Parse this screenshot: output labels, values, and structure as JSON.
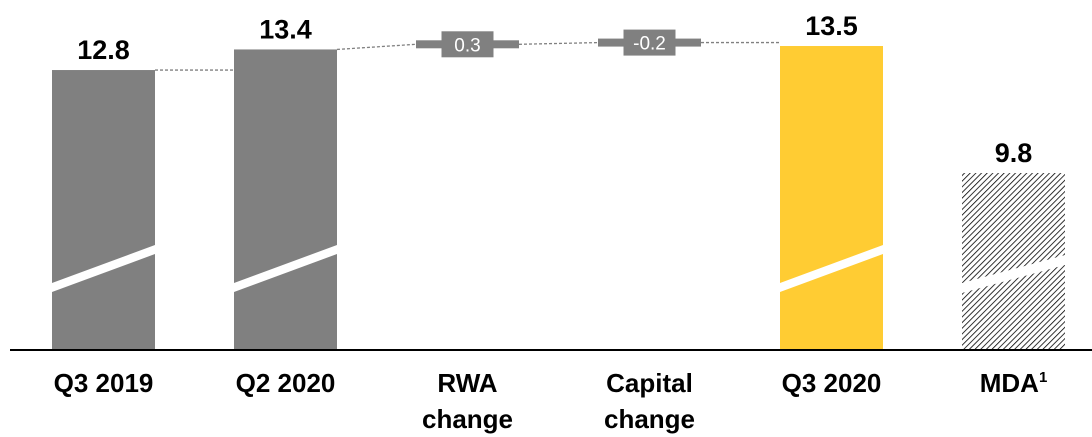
{
  "chart_data": {
    "type": "bar",
    "subtype": "waterfall",
    "title": "",
    "xlabel": "",
    "ylabel": "",
    "axis_break": true,
    "grid": false,
    "legend": "none",
    "categories": [
      {
        "lines": [
          "Q3 2019"
        ],
        "sup": ""
      },
      {
        "lines": [
          "Q2 2020"
        ],
        "sup": ""
      },
      {
        "lines": [
          "RWA",
          "change"
        ],
        "sup": ""
      },
      {
        "lines": [
          "Capital",
          "change"
        ],
        "sup": ""
      },
      {
        "lines": [
          "Q3 2020"
        ],
        "sup": ""
      },
      {
        "lines": [
          "MDA"
        ],
        "sup": "1"
      }
    ],
    "bars": [
      {
        "kind": "total",
        "value": 12.8,
        "label": "12.8",
        "color": "#808080"
      },
      {
        "kind": "total",
        "value": 13.4,
        "label": "13.4",
        "color": "#808080"
      },
      {
        "kind": "delta",
        "value": 0.3,
        "label": "0.3",
        "color": "#808080"
      },
      {
        "kind": "delta",
        "value": -0.2,
        "label": "-0.2",
        "color": "#808080"
      },
      {
        "kind": "total",
        "value": 13.5,
        "label": "13.5",
        "color": "#FFCC33"
      },
      {
        "kind": "hatched",
        "value": 9.8,
        "label": "9.8",
        "color": "#000000"
      }
    ]
  }
}
